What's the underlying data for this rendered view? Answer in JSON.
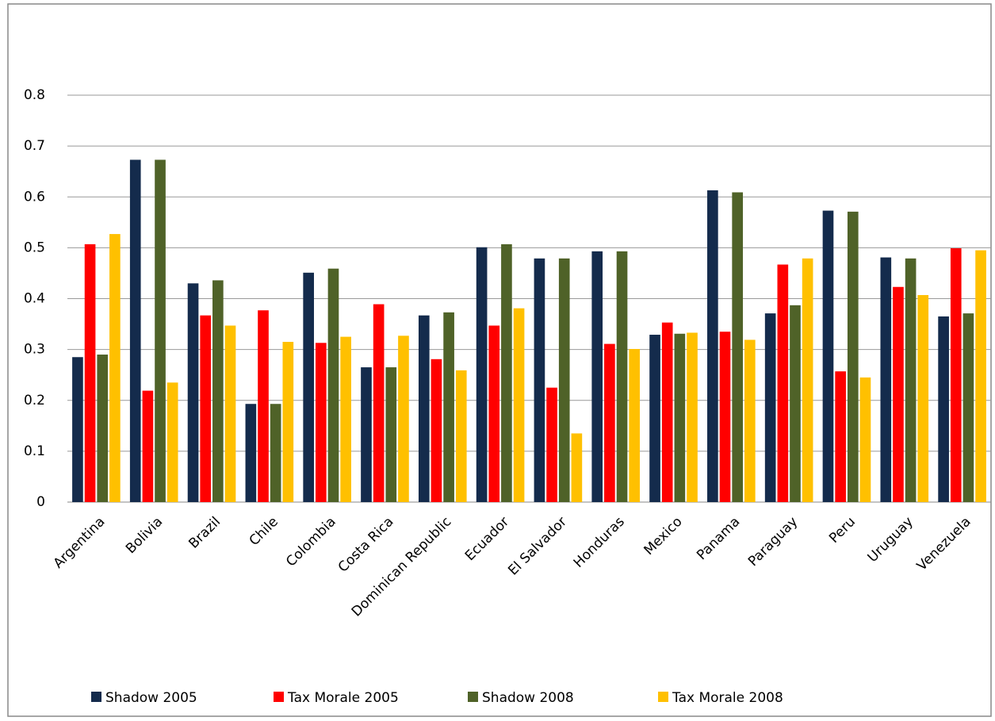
{
  "chart_data": {
    "type": "bar",
    "categories": [
      "Argentina",
      "Bolivia",
      "Brazil",
      "Chile",
      "Colombia",
      "Costa Rica",
      "Dominican Republic",
      "Ecuador",
      "El Salvador",
      "Honduras",
      "Mexico",
      "Panama",
      "Paraguay",
      "Peru",
      "Uruguay",
      "Venezuela"
    ],
    "series": [
      {
        "name": "Shadow 2005",
        "color": "#142b4c",
        "values": [
          0.285,
          0.673,
          0.43,
          0.193,
          0.451,
          0.265,
          0.367,
          0.501,
          0.479,
          0.493,
          0.329,
          0.613,
          0.371,
          0.573,
          0.481,
          0.365
        ]
      },
      {
        "name": "Tax Morale 2005",
        "color": "#ff0000",
        "values": [
          0.507,
          0.219,
          0.367,
          0.377,
          0.313,
          0.389,
          0.281,
          0.347,
          0.225,
          0.311,
          0.353,
          0.335,
          0.467,
          0.257,
          0.423,
          0.499
        ]
      },
      {
        "name": "Shadow 2008",
        "color": "#4f6228",
        "values": [
          0.29,
          0.673,
          0.436,
          0.193,
          0.459,
          0.265,
          0.373,
          0.507,
          0.479,
          0.493,
          0.331,
          0.609,
          0.387,
          0.571,
          0.479,
          0.371
        ]
      },
      {
        "name": "Tax Morale 2008",
        "color": "#ffc000",
        "values": [
          0.527,
          0.235,
          0.347,
          0.315,
          0.325,
          0.327,
          0.259,
          0.381,
          0.135,
          0.301,
          0.333,
          0.319,
          0.479,
          0.245,
          0.407,
          0.495
        ]
      }
    ],
    "ylim": [
      0,
      0.8
    ],
    "yticks": [
      0,
      0.1,
      0.2,
      0.3,
      0.4,
      0.5,
      0.6,
      0.7,
      0.8
    ],
    "grid": true,
    "legend": "bottom"
  }
}
